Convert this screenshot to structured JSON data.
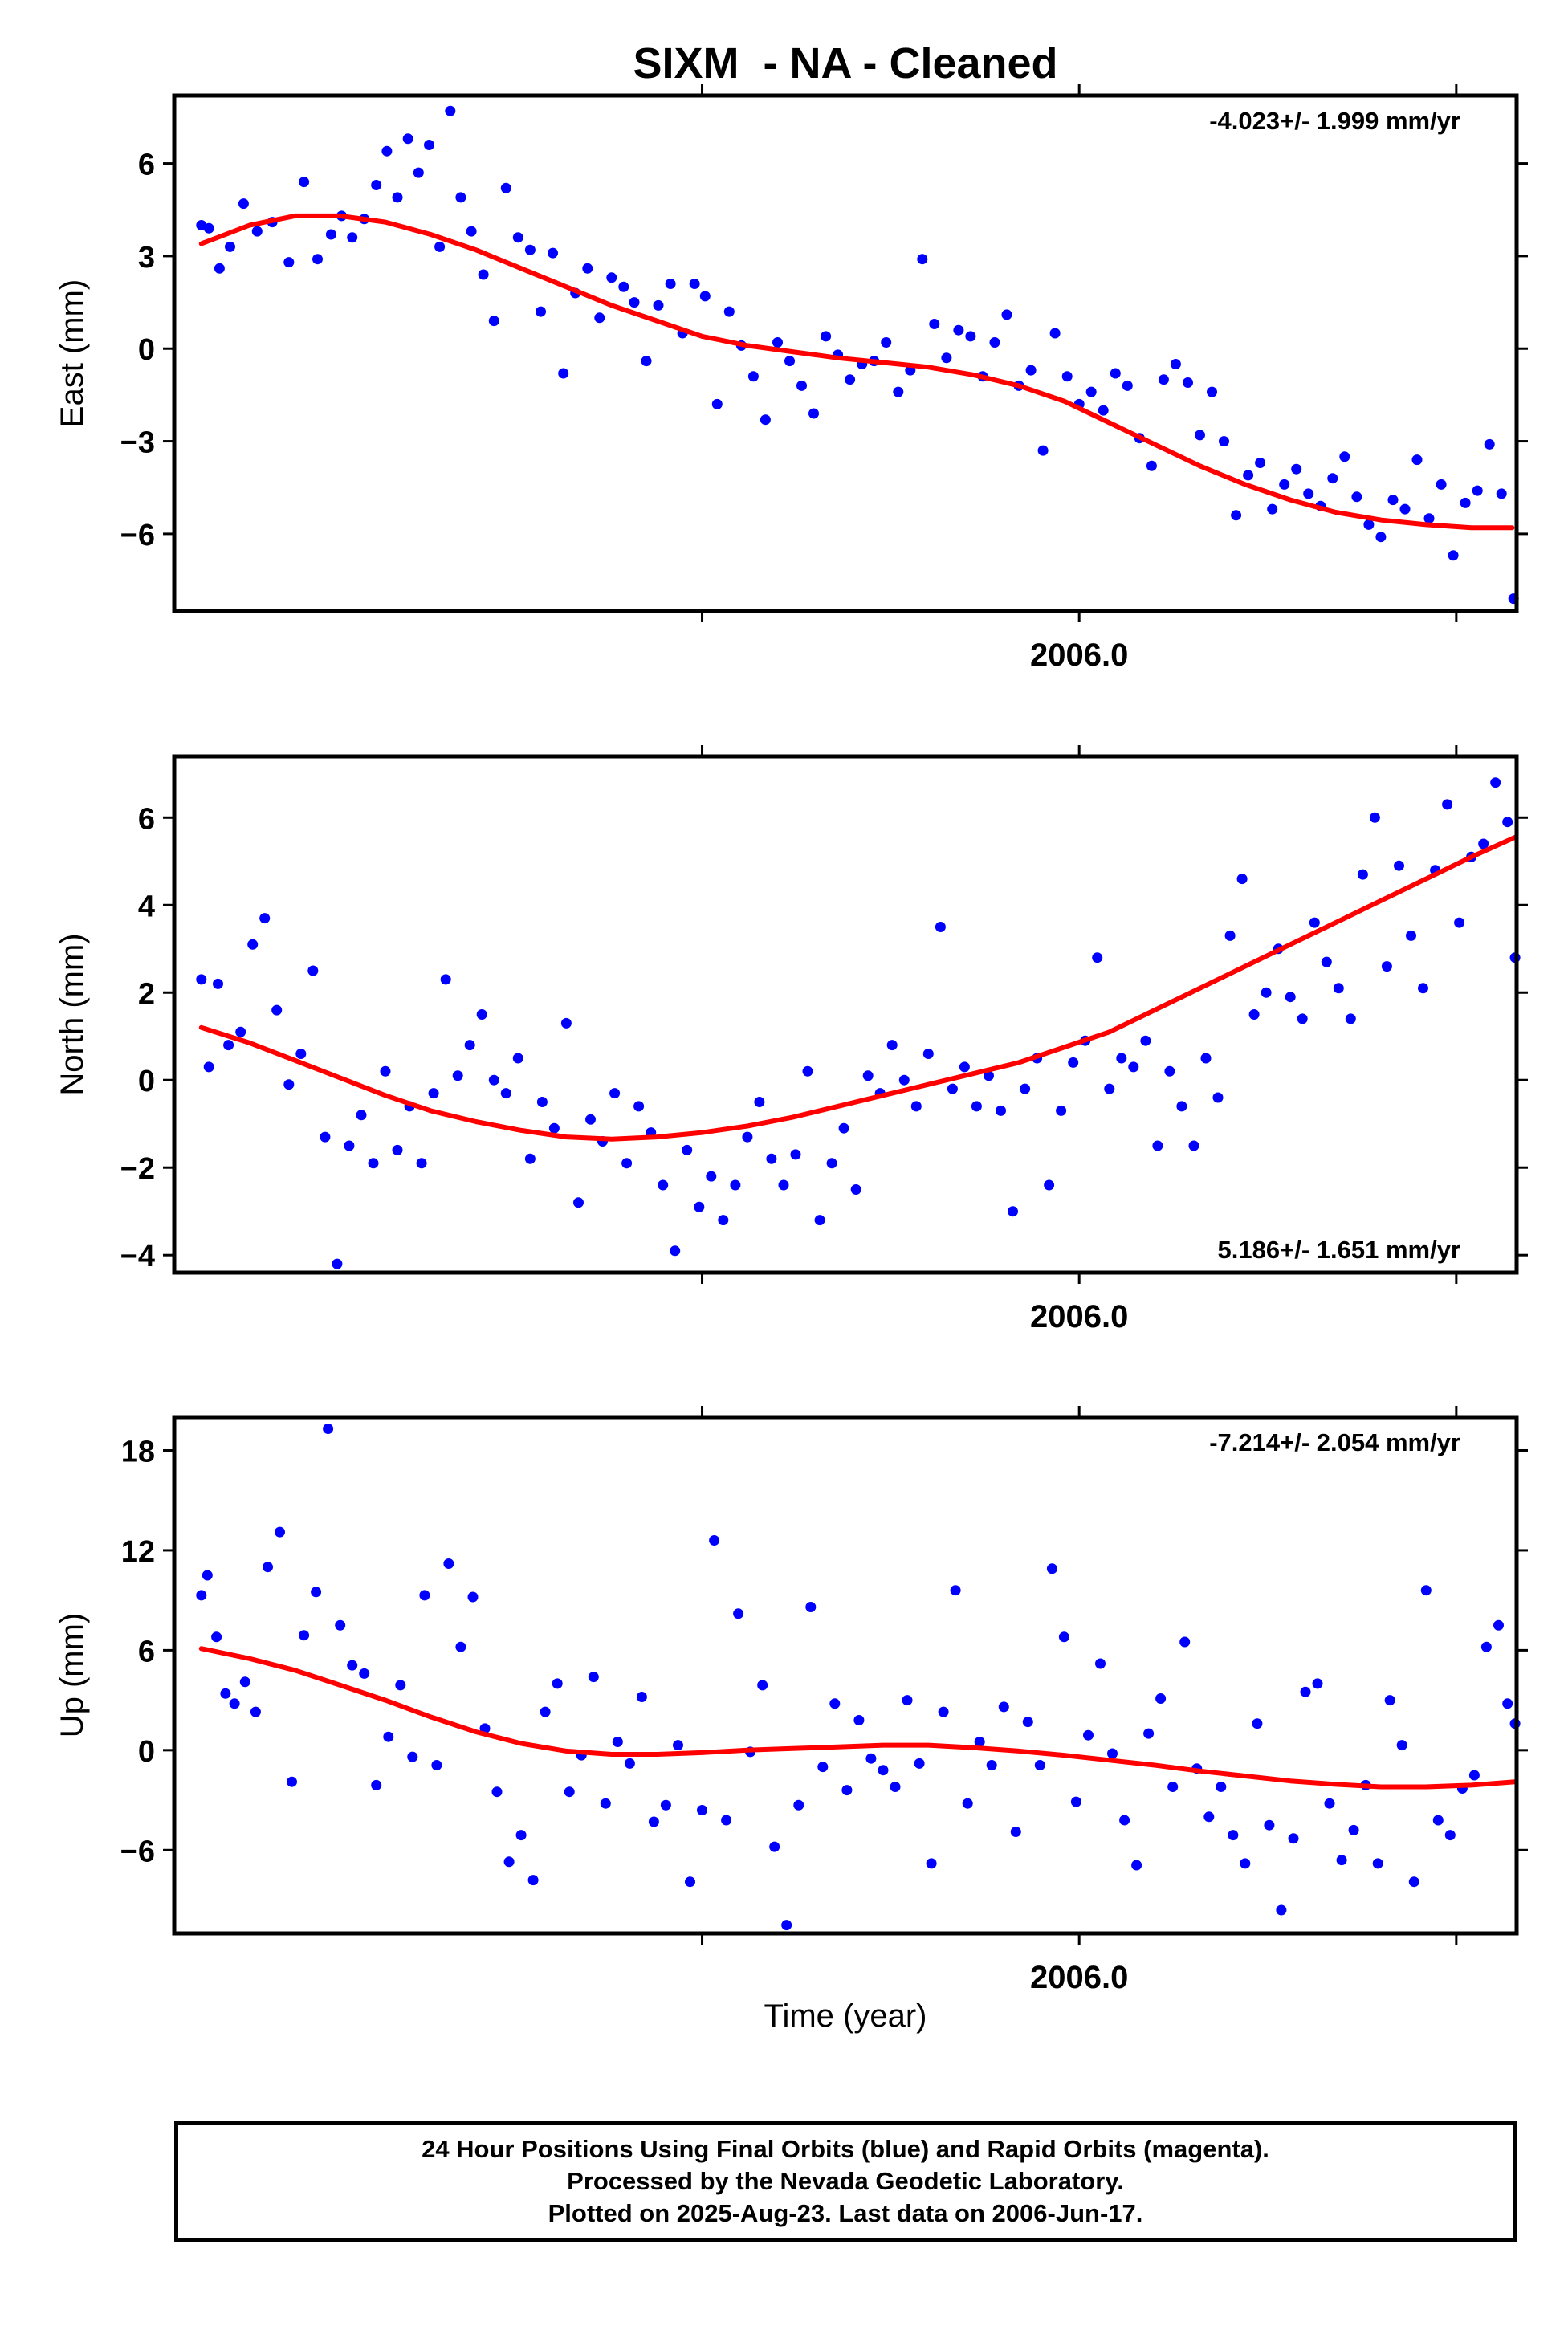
{
  "title": "SIXM  - NA - Cleaned",
  "colors": {
    "points": "#0000ff",
    "fit": "#ff0000",
    "frame": "#000000"
  },
  "footer": {
    "line1": "24 Hour Positions Using Final Orbits (blue) and Rapid Orbits (magenta).",
    "line2": "Processed by the Nevada Geodetic Laboratory.",
    "line3": "Plotted on 2025-Aug-23. Last data on 2006-Jun-17."
  },
  "chart_data": [
    {
      "type": "scatter",
      "ylabel": "East (mm)",
      "xlabel": "",
      "x_tick_label": "2006.0",
      "xlim": [
        2005.4,
        2006.29
      ],
      "ylim": [
        -8.5,
        8.2
      ],
      "yticks": [
        -6,
        -3,
        0,
        3,
        6
      ],
      "rate_text": "-4.023+/- 1.999 mm/yr",
      "rate_position": "top-right",
      "series": [
        {
          "role": "daily positions",
          "x": [
            2005.418,
            2005.423,
            2005.43,
            2005.437,
            2005.446,
            2005.455,
            2005.465,
            2005.476,
            2005.486,
            2005.495,
            2005.504,
            2005.511,
            2005.518,
            2005.526,
            2005.534,
            2005.541,
            2005.548,
            2005.555,
            2005.562,
            2005.569,
            2005.576,
            2005.583,
            2005.59,
            2005.597,
            2005.605,
            2005.612,
            2005.62,
            2005.628,
            2005.636,
            2005.643,
            2005.651,
            2005.658,
            2005.666,
            2005.674,
            2005.682,
            2005.69,
            2005.698,
            2005.705,
            2005.713,
            2005.721,
            2005.729,
            2005.737,
            2005.745,
            2005.752,
            2005.76,
            2005.768,
            2005.776,
            2005.784,
            2005.792,
            2005.8,
            2005.808,
            2005.816,
            2005.824,
            2005.832,
            2005.84,
            2005.848,
            2005.856,
            2005.864,
            2005.872,
            2005.88,
            2005.888,
            2005.896,
            2005.904,
            2005.912,
            2005.92,
            2005.928,
            2005.936,
            2005.944,
            2005.952,
            2005.96,
            2005.968,
            2005.976,
            2005.984,
            2005.992,
            2006.0,
            2006.008,
            2006.016,
            2006.024,
            2006.032,
            2006.04,
            2006.048,
            2006.056,
            2006.064,
            2006.072,
            2006.08,
            2006.088,
            2006.096,
            2006.104,
            2006.112,
            2006.12,
            2006.128,
            2006.136,
            2006.144,
            2006.152,
            2006.16,
            2006.168,
            2006.176,
            2006.184,
            2006.192,
            2006.2,
            2006.208,
            2006.216,
            2006.224,
            2006.232,
            2006.24,
            2006.248,
            2006.256,
            2006.264,
            2006.272,
            2006.28,
            2006.288
          ],
          "y": [
            4.0,
            3.9,
            2.6,
            3.3,
            4.7,
            3.8,
            4.1,
            2.8,
            5.4,
            2.9,
            3.7,
            4.3,
            3.6,
            4.2,
            5.3,
            6.4,
            4.9,
            6.8,
            5.7,
            6.6,
            3.3,
            7.7,
            4.9,
            3.8,
            2.4,
            0.9,
            5.2,
            3.6,
            3.2,
            1.2,
            3.1,
            -0.8,
            1.8,
            2.6,
            1.0,
            2.3,
            2.0,
            1.5,
            -0.4,
            1.4,
            2.1,
            0.5,
            2.1,
            1.7,
            -1.8,
            1.2,
            0.1,
            -0.9,
            -2.3,
            0.2,
            -0.4,
            -1.2,
            -2.1,
            0.4,
            -0.2,
            -1.0,
            -0.5,
            -0.4,
            0.2,
            -1.4,
            -0.7,
            2.9,
            0.8,
            -0.3,
            0.6,
            0.4,
            -0.9,
            0.2,
            1.1,
            -1.2,
            -0.7,
            -3.3,
            0.5,
            -0.9,
            -1.8,
            -1.4,
            -2.0,
            -0.8,
            -1.2,
            -2.9,
            -3.8,
            -1.0,
            -0.5,
            -1.1,
            -2.8,
            -1.4,
            -3.0,
            -5.4,
            -4.1,
            -3.7,
            -5.2,
            -4.4,
            -3.9,
            -4.7,
            -5.1,
            -4.2,
            -3.5,
            -4.8,
            -5.7,
            -6.1,
            -4.9,
            -5.2,
            -3.6,
            -5.5,
            -4.4,
            -6.7,
            -5.0,
            -4.6,
            -3.1,
            -4.7,
            -8.1
          ]
        },
        {
          "role": "fit",
          "x": [
            2005.418,
            2005.45,
            2005.48,
            2005.51,
            2005.54,
            2005.57,
            2005.6,
            2005.63,
            2005.66,
            2005.69,
            2005.72,
            2005.75,
            2005.78,
            2005.81,
            2005.84,
            2005.87,
            2005.9,
            2005.93,
            2005.96,
            2005.99,
            2006.02,
            2006.05,
            2006.08,
            2006.11,
            2006.14,
            2006.17,
            2006.2,
            2006.23,
            2006.26,
            2006.287
          ],
          "y": [
            3.4,
            4.0,
            4.3,
            4.3,
            4.1,
            3.7,
            3.2,
            2.6,
            2.0,
            1.4,
            0.9,
            0.4,
            0.1,
            -0.1,
            -0.3,
            -0.45,
            -0.6,
            -0.85,
            -1.2,
            -1.7,
            -2.4,
            -3.1,
            -3.8,
            -4.4,
            -4.9,
            -5.3,
            -5.55,
            -5.7,
            -5.8,
            -5.8
          ]
        }
      ]
    },
    {
      "type": "scatter",
      "ylabel": "North (mm)",
      "xlabel": "",
      "x_tick_label": "2006.0",
      "xlim": [
        2005.4,
        2006.29
      ],
      "ylim": [
        -4.4,
        7.4
      ],
      "yticks": [
        -4,
        -2,
        0,
        2,
        4,
        6
      ],
      "rate_text": "5.186+/- 1.651 mm/yr",
      "rate_position": "bottom-right",
      "series": [
        {
          "role": "daily positions",
          "x": [
            2005.418,
            2005.423,
            2005.429,
            2005.436,
            2005.444,
            2005.452,
            2005.46,
            2005.468,
            2005.476,
            2005.484,
            2005.492,
            2005.5,
            2005.508,
            2005.516,
            2005.524,
            2005.532,
            2005.54,
            2005.548,
            2005.556,
            2005.564,
            2005.572,
            2005.58,
            2005.588,
            2005.596,
            2005.604,
            2005.612,
            2005.62,
            2005.628,
            2005.636,
            2005.644,
            2005.652,
            2005.66,
            2005.668,
            2005.676,
            2005.684,
            2005.692,
            2005.7,
            2005.708,
            2005.716,
            2005.724,
            2005.732,
            2005.74,
            2005.748,
            2005.756,
            2005.764,
            2005.772,
            2005.78,
            2005.788,
            2005.796,
            2005.804,
            2005.812,
            2005.82,
            2005.828,
            2005.836,
            2005.844,
            2005.852,
            2005.86,
            2005.868,
            2005.876,
            2005.884,
            2005.892,
            2005.9,
            2005.908,
            2005.916,
            2005.924,
            2005.932,
            2005.94,
            2005.948,
            2005.956,
            2005.964,
            2005.972,
            2005.98,
            2005.988,
            2005.996,
            2006.004,
            2006.012,
            2006.02,
            2006.028,
            2006.036,
            2006.044,
            2006.052,
            2006.06,
            2006.068,
            2006.076,
            2006.084,
            2006.092,
            2006.1,
            2006.108,
            2006.116,
            2006.124,
            2006.132,
            2006.14,
            2006.148,
            2006.156,
            2006.164,
            2006.172,
            2006.18,
            2006.188,
            2006.196,
            2006.204,
            2006.212,
            2006.22,
            2006.228,
            2006.236,
            2006.244,
            2006.252,
            2006.26,
            2006.268,
            2006.276,
            2006.284,
            2006.289
          ],
          "y": [
            2.3,
            0.3,
            2.2,
            0.8,
            1.1,
            3.1,
            3.7,
            1.6,
            -0.1,
            0.6,
            2.5,
            -1.3,
            -4.2,
            -1.5,
            -0.8,
            -1.9,
            0.2,
            -1.6,
            -0.6,
            -1.9,
            -0.3,
            2.3,
            0.1,
            0.8,
            1.5,
            0.0,
            -0.3,
            0.5,
            -1.8,
            -0.5,
            -1.1,
            1.3,
            -2.8,
            -0.9,
            -1.4,
            -0.3,
            -1.9,
            -0.6,
            -1.2,
            -2.4,
            -3.9,
            -1.6,
            -2.9,
            -2.2,
            -3.2,
            -2.4,
            -1.3,
            -0.5,
            -1.8,
            -2.4,
            -1.7,
            0.2,
            -3.2,
            -1.9,
            -1.1,
            -2.5,
            0.1,
            -0.3,
            0.8,
            0.0,
            -0.6,
            0.6,
            3.5,
            -0.2,
            0.3,
            -0.6,
            0.1,
            -0.7,
            -3.0,
            -0.2,
            0.5,
            -2.4,
            -0.7,
            0.4,
            0.9,
            2.8,
            -0.2,
            0.5,
            0.3,
            0.9,
            -1.5,
            0.2,
            -0.6,
            -1.5,
            0.5,
            -0.4,
            3.3,
            4.6,
            1.5,
            2.0,
            3.0,
            1.9,
            1.4,
            3.6,
            2.7,
            2.1,
            1.4,
            4.7,
            6.0,
            2.6,
            4.9,
            3.3,
            2.1,
            4.8,
            6.3,
            3.6,
            5.1,
            5.4,
            6.8,
            5.9,
            2.8
          ]
        },
        {
          "role": "fit",
          "x": [
            2005.418,
            2005.45,
            2005.48,
            2005.51,
            2005.54,
            2005.57,
            2005.6,
            2005.63,
            2005.66,
            2005.69,
            2005.72,
            2005.75,
            2005.78,
            2005.81,
            2005.84,
            2005.87,
            2005.9,
            2005.93,
            2005.96,
            2005.99,
            2006.02,
            2006.05,
            2006.08,
            2006.11,
            2006.14,
            2006.17,
            2006.2,
            2006.23,
            2006.26,
            2006.289
          ],
          "y": [
            1.2,
            0.85,
            0.45,
            0.05,
            -0.35,
            -0.7,
            -0.95,
            -1.15,
            -1.3,
            -1.35,
            -1.3,
            -1.2,
            -1.05,
            -0.85,
            -0.6,
            -0.35,
            -0.1,
            0.15,
            0.4,
            0.75,
            1.1,
            1.6,
            2.1,
            2.6,
            3.1,
            3.6,
            4.1,
            4.6,
            5.1,
            5.55
          ]
        }
      ]
    },
    {
      "type": "scatter",
      "ylabel": "Up (mm)",
      "xlabel": "Time (year)",
      "x_tick_label": "2006.0",
      "xlim": [
        2005.4,
        2006.29
      ],
      "ylim": [
        -11,
        20
      ],
      "yticks": [
        -6,
        0,
        6,
        12,
        18
      ],
      "rate_text": "-7.214+/- 2.054 mm/yr",
      "rate_position": "top-right",
      "series": [
        {
          "role": "daily positions",
          "x": [
            2005.418,
            2005.422,
            2005.428,
            2005.434,
            2005.44,
            2005.447,
            2005.454,
            2005.462,
            2005.47,
            2005.478,
            2005.486,
            2005.494,
            2005.502,
            2005.51,
            2005.518,
            2005.526,
            2005.534,
            2005.542,
            2005.55,
            2005.558,
            2005.566,
            2005.574,
            2005.582,
            2005.59,
            2005.598,
            2005.606,
            2005.614,
            2005.622,
            2005.63,
            2005.638,
            2005.646,
            2005.654,
            2005.662,
            2005.67,
            2005.678,
            2005.686,
            2005.694,
            2005.702,
            2005.71,
            2005.718,
            2005.726,
            2005.734,
            2005.742,
            2005.75,
            2005.758,
            2005.766,
            2005.774,
            2005.782,
            2005.79,
            2005.798,
            2005.806,
            2005.814,
            2005.822,
            2005.83,
            2005.838,
            2005.846,
            2005.854,
            2005.862,
            2005.87,
            2005.878,
            2005.886,
            2005.894,
            2005.902,
            2005.91,
            2005.918,
            2005.926,
            2005.934,
            2005.942,
            2005.95,
            2005.958,
            2005.966,
            2005.974,
            2005.982,
            2005.99,
            2005.998,
            2006.006,
            2006.014,
            2006.022,
            2006.03,
            2006.038,
            2006.046,
            2006.054,
            2006.062,
            2006.07,
            2006.078,
            2006.086,
            2006.094,
            2006.102,
            2006.11,
            2006.118,
            2006.126,
            2006.134,
            2006.142,
            2006.15,
            2006.158,
            2006.166,
            2006.174,
            2006.182,
            2006.19,
            2006.198,
            2006.206,
            2006.214,
            2006.222,
            2006.23,
            2006.238,
            2006.246,
            2006.254,
            2006.262,
            2006.27,
            2006.278,
            2006.284,
            2006.289
          ],
          "y": [
            9.3,
            10.5,
            6.8,
            3.4,
            2.8,
            4.1,
            2.3,
            11.0,
            13.1,
            -1.9,
            6.9,
            9.5,
            19.3,
            7.5,
            5.1,
            4.6,
            -2.1,
            0.8,
            3.9,
            -0.4,
            9.3,
            -0.9,
            11.2,
            6.2,
            9.2,
            1.3,
            -2.5,
            -6.7,
            -5.1,
            -7.8,
            2.3,
            4.0,
            -2.5,
            -0.3,
            4.4,
            -3.2,
            0.5,
            -0.8,
            3.2,
            -4.3,
            -3.3,
            0.3,
            -7.9,
            -3.6,
            12.6,
            -4.2,
            8.2,
            -0.1,
            3.9,
            -5.8,
            -10.5,
            -3.3,
            8.6,
            -1.0,
            2.8,
            -2.4,
            1.8,
            -0.5,
            -1.2,
            -2.2,
            3.0,
            -0.8,
            -6.8,
            2.3,
            9.6,
            -3.2,
            0.5,
            -0.9,
            2.6,
            -4.9,
            1.7,
            -0.9,
            10.9,
            6.8,
            -3.1,
            0.9,
            5.2,
            -0.2,
            -4.2,
            -6.9,
            1.0,
            3.1,
            -2.2,
            6.5,
            -1.1,
            -4.0,
            -2.2,
            -5.1,
            -6.8,
            1.6,
            -4.5,
            -9.6,
            -5.3,
            3.5,
            4.0,
            -3.2,
            -6.6,
            -4.8,
            -2.1,
            -6.8,
            3.0,
            0.3,
            -7.9,
            9.6,
            -4.2,
            -5.1,
            -2.3,
            -1.5,
            6.2,
            7.5,
            2.8,
            1.6
          ]
        },
        {
          "role": "fit",
          "x": [
            2005.418,
            2005.45,
            2005.48,
            2005.51,
            2005.54,
            2005.57,
            2005.6,
            2005.63,
            2005.66,
            2005.69,
            2005.72,
            2005.75,
            2005.78,
            2005.81,
            2005.84,
            2005.87,
            2005.9,
            2005.93,
            2005.96,
            2005.99,
            2006.02,
            2006.05,
            2006.08,
            2006.11,
            2006.14,
            2006.17,
            2006.2,
            2006.23,
            2006.26,
            2006.289
          ],
          "y": [
            6.1,
            5.5,
            4.8,
            3.9,
            3.0,
            2.0,
            1.1,
            0.4,
            -0.05,
            -0.25,
            -0.25,
            -0.15,
            0.0,
            0.1,
            0.2,
            0.3,
            0.3,
            0.15,
            -0.05,
            -0.3,
            -0.6,
            -0.9,
            -1.25,
            -1.55,
            -1.85,
            -2.05,
            -2.2,
            -2.2,
            -2.1,
            -1.9
          ]
        }
      ]
    }
  ]
}
